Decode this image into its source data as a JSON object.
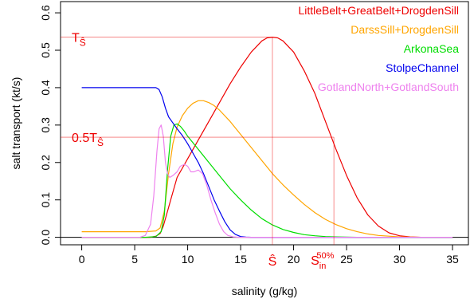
{
  "chart_data": {
    "type": "line",
    "title": "",
    "xlabel": "salinity (g/kg)",
    "ylabel": "salt transport (kt/s)",
    "xlim": [
      -2,
      36.5
    ],
    "ylim": [
      -0.02,
      0.63
    ],
    "xticks": [
      0,
      5,
      10,
      15,
      20,
      25,
      30,
      35
    ],
    "yticks": [
      0.0,
      0.1,
      0.2,
      0.3,
      0.4,
      0.5,
      0.6
    ],
    "ytick_labels": [
      "0.0",
      "0.1",
      "0.2",
      "0.3",
      "0.4",
      "0.5",
      "0.6"
    ],
    "grid": false,
    "legend_position": "top-right",
    "zero_line": true,
    "series": [
      {
        "name": "LittleBelt+GreatBelt+DrogdenSill",
        "color": "#ee0000",
        "x": [
          0,
          6.5,
          7.0,
          7.4,
          7.7,
          8.0,
          8.5,
          9.0,
          10.0,
          11.0,
          12.0,
          13.0,
          14.0,
          15.0,
          16.0,
          17.0,
          17.5,
          18.0,
          18.5,
          19.0,
          20.0,
          21.0,
          22.0,
          23.0,
          24.0,
          25.0,
          26.0,
          27.0,
          28.0,
          29.0,
          30.0,
          31.0,
          32.0,
          35.0
        ],
        "y": [
          0,
          0,
          0.003,
          0.01,
          0.03,
          0.06,
          0.11,
          0.16,
          0.21,
          0.26,
          0.31,
          0.36,
          0.41,
          0.455,
          0.495,
          0.525,
          0.533,
          0.535,
          0.533,
          0.525,
          0.495,
          0.445,
          0.385,
          0.31,
          0.235,
          0.165,
          0.105,
          0.06,
          0.03,
          0.012,
          0.004,
          0.001,
          0,
          0
        ]
      },
      {
        "name": "DarssSill+DrogdenSill",
        "color": "#ffa500",
        "x": [
          0,
          6.0,
          7.0,
          7.4,
          7.8,
          8.2,
          8.6,
          9.0,
          9.5,
          10.0,
          10.5,
          11.0,
          11.5,
          12.0,
          12.5,
          13.0,
          14.0,
          15.0,
          16.0,
          17.0,
          18.0,
          19.0,
          20.0,
          21.0,
          22.0,
          23.0,
          24.0,
          25.0,
          26.0,
          27.0,
          28.0,
          29.0,
          30.0,
          31.0,
          32.0,
          35.0
        ],
        "y": [
          0.015,
          0.015,
          0.017,
          0.025,
          0.07,
          0.17,
          0.25,
          0.295,
          0.325,
          0.345,
          0.358,
          0.365,
          0.365,
          0.36,
          0.352,
          0.34,
          0.31,
          0.275,
          0.24,
          0.205,
          0.17,
          0.14,
          0.113,
          0.088,
          0.066,
          0.048,
          0.034,
          0.023,
          0.015,
          0.009,
          0.005,
          0.003,
          0.001,
          0.0005,
          0,
          0
        ]
      },
      {
        "name": "ArkonaSea",
        "color": "#00dd00",
        "x": [
          0,
          6.0,
          7.0,
          7.5,
          7.8,
          8.1,
          8.4,
          8.7,
          9.0,
          9.3,
          9.7,
          10.0,
          11.0,
          12.0,
          13.0,
          14.0,
          15.0,
          16.0,
          17.0,
          18.0,
          19.0,
          20.0,
          21.0,
          22.0,
          23.0,
          24.0,
          26.0,
          28.0,
          35.0
        ],
        "y": [
          0,
          0,
          0.002,
          0.015,
          0.06,
          0.18,
          0.27,
          0.3,
          0.303,
          0.297,
          0.283,
          0.27,
          0.235,
          0.2,
          0.165,
          0.13,
          0.1,
          0.073,
          0.05,
          0.033,
          0.021,
          0.013,
          0.007,
          0.004,
          0.002,
          0.001,
          0,
          0,
          0
        ]
      },
      {
        "name": "StolpeChannel",
        "color": "#0000ee",
        "x": [
          0,
          5.0,
          7.0,
          7.3,
          7.6,
          7.9,
          8.2,
          8.5,
          9.0,
          9.5,
          10.0,
          10.5,
          11.0,
          11.5,
          12.0,
          12.5,
          13.0,
          13.5,
          14.0,
          14.5,
          15.0,
          15.5,
          16.0,
          35.0
        ],
        "y": [
          0.4,
          0.4,
          0.4,
          0.395,
          0.375,
          0.345,
          0.322,
          0.31,
          0.29,
          0.272,
          0.25,
          0.225,
          0.2,
          0.17,
          0.135,
          0.1,
          0.07,
          0.042,
          0.02,
          0.008,
          0.002,
          0.0005,
          0,
          0
        ]
      },
      {
        "name": "GotlandNorth+GotlandSouth",
        "color": "#ee82ee",
        "x": [
          0,
          5.5,
          6.0,
          6.5,
          6.8,
          7.1,
          7.3,
          7.5,
          7.7,
          7.9,
          8.1,
          8.3,
          8.6,
          9.0,
          9.3,
          9.7,
          10.0,
          10.3,
          10.6,
          11.0,
          11.4,
          11.8,
          12.2,
          12.6,
          13.0,
          13.4,
          13.8,
          14.3,
          15.0,
          35.0
        ],
        "y": [
          0,
          0,
          0.005,
          0.035,
          0.11,
          0.23,
          0.29,
          0.3,
          0.27,
          0.2,
          0.17,
          0.16,
          0.165,
          0.175,
          0.19,
          0.195,
          0.19,
          0.175,
          0.175,
          0.18,
          0.17,
          0.14,
          0.1,
          0.065,
          0.035,
          0.015,
          0.005,
          0.001,
          0,
          0
        ]
      }
    ],
    "annotations": {
      "t_shat_label": "T",
      "t_shat_sub": "Ŝ",
      "t_shat_y": 0.535,
      "half_prefix": "0.5T",
      "half_sub": "Ŝ",
      "half_y": 0.2675,
      "shat_x": 18.0,
      "shat_label": "Ŝ",
      "s50_x": 23.8,
      "s50_label": "S",
      "s50_sub": "in",
      "s50_sup": "50%",
      "color": "#ee0000"
    }
  }
}
